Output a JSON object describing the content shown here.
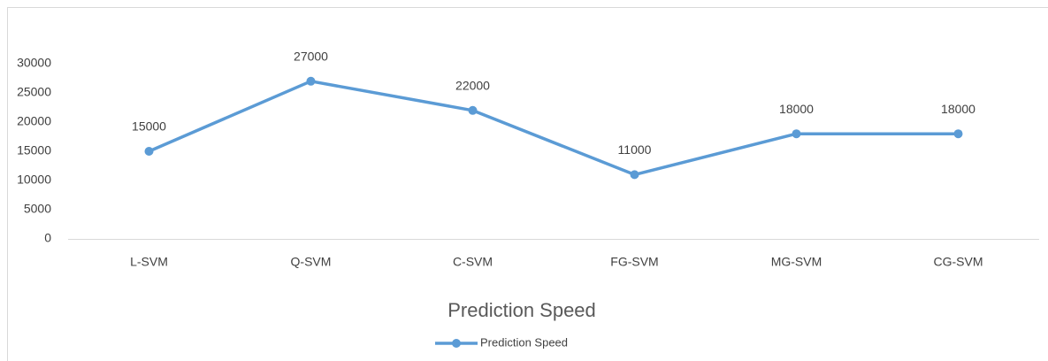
{
  "chart_data": {
    "type": "line",
    "title": "Prediction Speed",
    "categories": [
      "L-SVM",
      "Q-SVM",
      "C-SVM",
      "FG-SVM",
      "MG-SVM",
      "CG-SVM"
    ],
    "series": [
      {
        "name": "Prediction Speed",
        "color": "#5b9bd5",
        "values": [
          15000,
          27000,
          22000,
          11000,
          18000,
          18000
        ]
      }
    ],
    "ylim": [
      0,
      30000
    ],
    "yticks": [
      0,
      5000,
      10000,
      15000,
      20000,
      25000,
      30000
    ],
    "grid": false,
    "data_labels": true,
    "legend": "bottom"
  }
}
